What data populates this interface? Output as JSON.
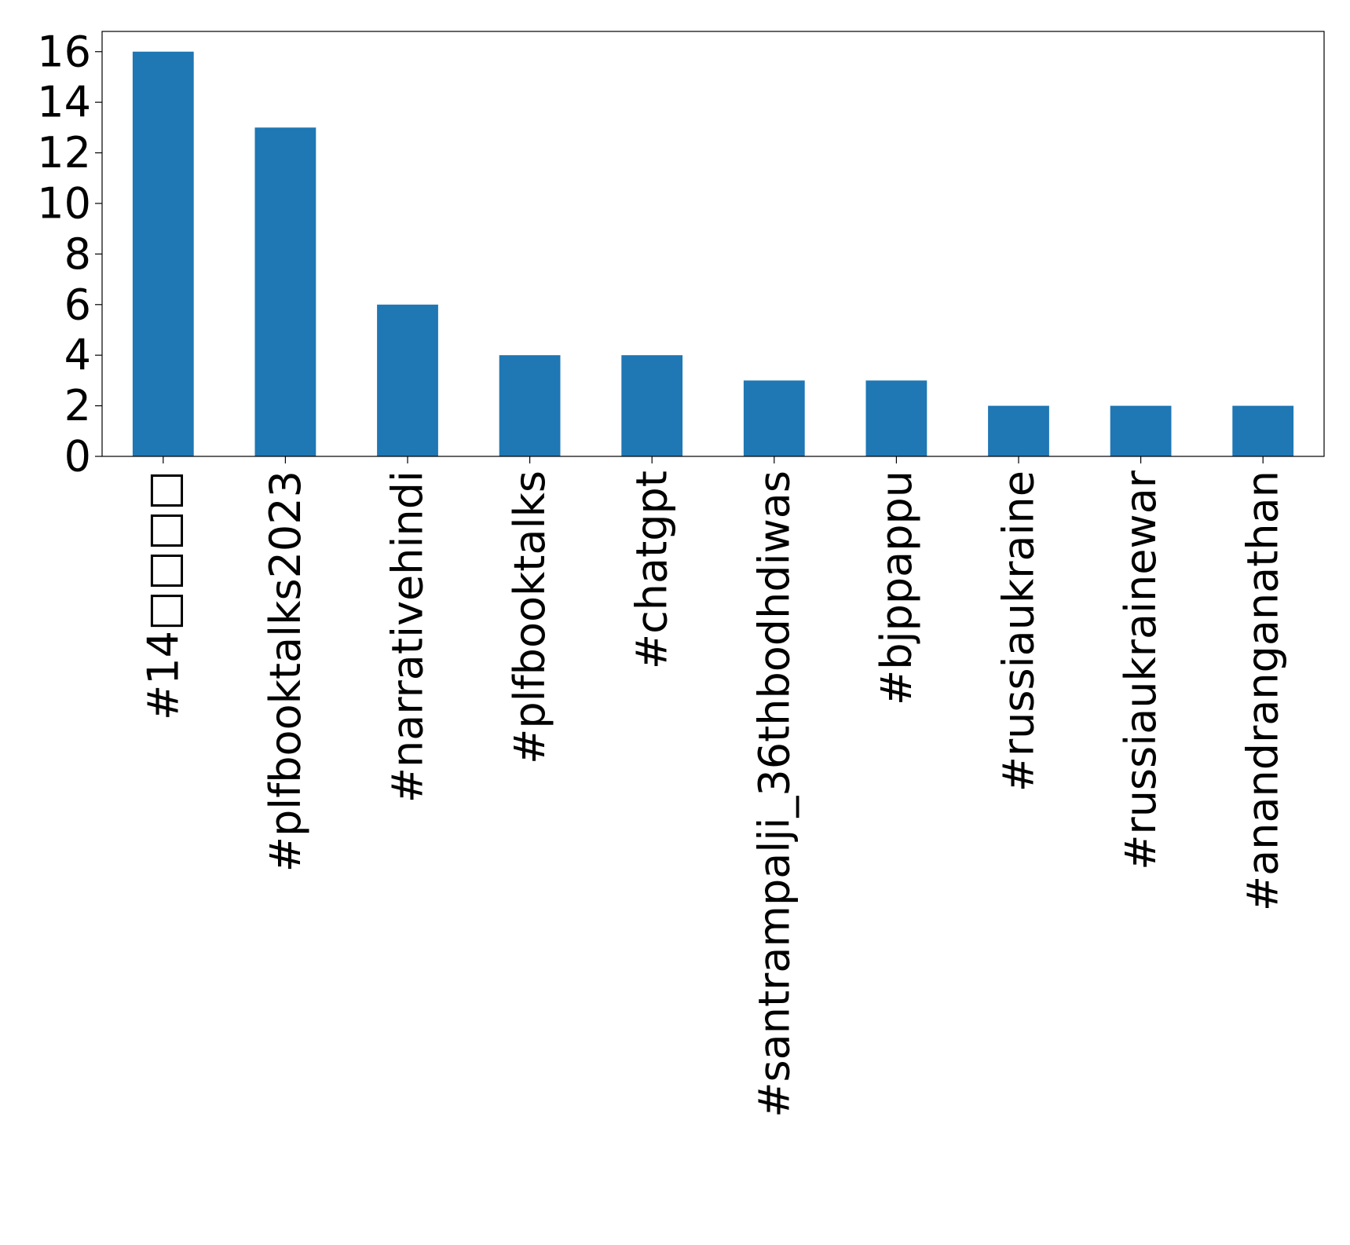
{
  "chart_data": {
    "type": "bar",
    "title": "",
    "xlabel": "",
    "ylabel": "",
    "categories": [
      "#14□□□□",
      "#plfbooktalks2023",
      "#narrativehindi",
      "#plfbooktalks",
      "#chatgpt",
      "#santrampalji_36thbodhdiwas",
      "#bjppappu",
      "#russiaukraine",
      "#russiaukrainewar",
      "#anandranganathan"
    ],
    "values": [
      16,
      13,
      6,
      4,
      4,
      3,
      3,
      2,
      2,
      2
    ],
    "ylim": [
      0,
      16.8
    ],
    "yticks": [
      0,
      2,
      4,
      6,
      8,
      10,
      12,
      14,
      16
    ],
    "ytick_labels": [
      "0",
      "2",
      "4",
      "6",
      "8",
      "10",
      "12",
      "14",
      "16"
    ],
    "grid": false,
    "legend": "none",
    "bar_color": "#1f77b4"
  }
}
